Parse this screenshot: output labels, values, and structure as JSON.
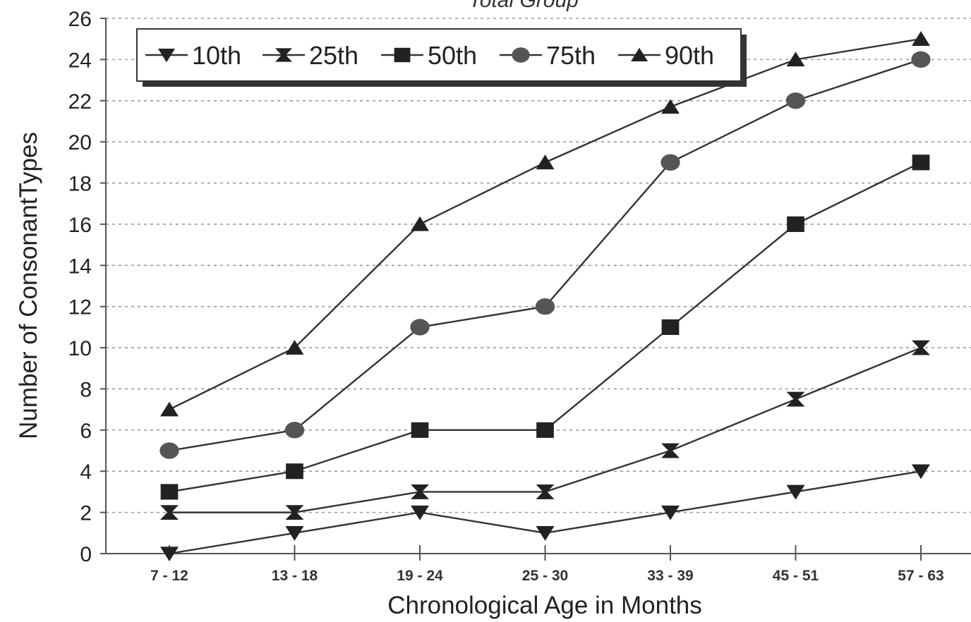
{
  "chart_data": {
    "type": "line",
    "title": "Total Group",
    "xlabel": "Chronological Age in Months",
    "ylabel": "Number of ConsonantTypes",
    "categories": [
      "7 - 12",
      "13 - 18",
      "19 - 24",
      "25 - 30",
      "33 - 39",
      "45 - 51",
      "57 - 63"
    ],
    "ylim": [
      0,
      26
    ],
    "yticks": [
      "0",
      "2",
      "4",
      "6",
      "8",
      "10",
      "12",
      "14",
      "16",
      "18",
      "20",
      "22",
      "24",
      "26"
    ],
    "grid": "horizontal dashed",
    "legend_position": "top-left",
    "series": [
      {
        "name": "10th",
        "marker": "triangle-down",
        "values": [
          0,
          1,
          2,
          1,
          2,
          3,
          4
        ]
      },
      {
        "name": "25th",
        "marker": "bowtie",
        "values": [
          2,
          2,
          3,
          3,
          5,
          7.5,
          10
        ]
      },
      {
        "name": "50th",
        "marker": "square",
        "values": [
          3,
          4,
          6,
          6,
          11,
          16,
          19
        ]
      },
      {
        "name": "75th",
        "marker": "circle",
        "values": [
          5,
          6,
          11,
          12,
          19,
          22,
          24
        ]
      },
      {
        "name": "90th",
        "marker": "triangle-up",
        "values": [
          7,
          10,
          16,
          19,
          21.7,
          24,
          25
        ]
      }
    ],
    "colors": {
      "line": "#333333",
      "marker": "#222222",
      "grid": "#9a9a9a"
    }
  }
}
